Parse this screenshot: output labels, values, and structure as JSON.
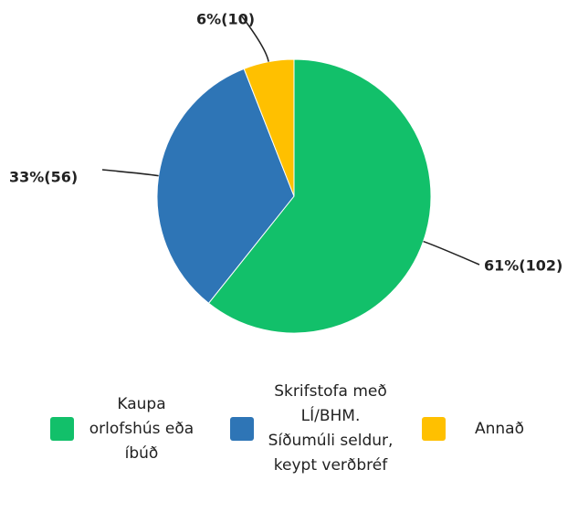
{
  "chart_data": {
    "type": "pie",
    "categories": [
      "Kaupa orlofshús eða íbúð",
      "Skrifstofa með LÍ/BHM. Síðumúli seldur, keypt verðbréf",
      "Annað"
    ],
    "values": [
      102,
      56,
      10
    ],
    "value_labels": [
      "61%(102)",
      "33%(56)",
      "6%(10)"
    ],
    "colors": [
      "#12c06a",
      "#2e75b6",
      "#ffc000"
    ],
    "legend": "bottom"
  }
}
